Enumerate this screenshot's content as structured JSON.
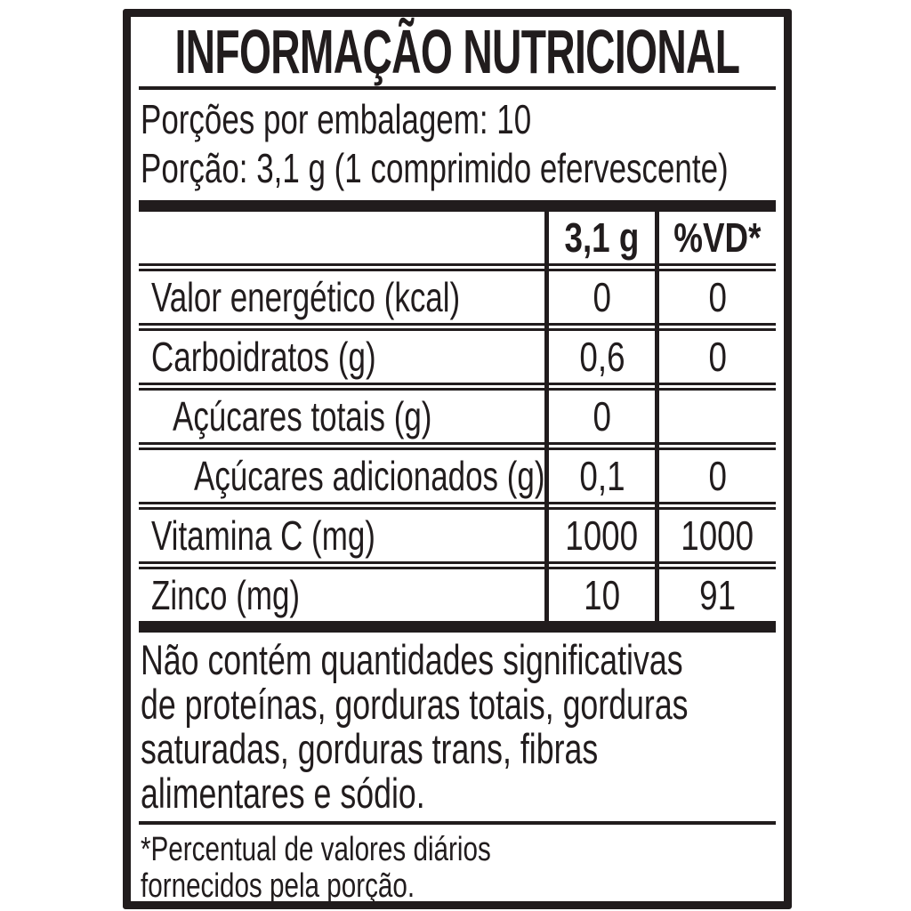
{
  "label": {
    "title": "INFORMAÇÃO NUTRICIONAL",
    "serving_info": {
      "servings_per_package": "Porções por embalagem: 10",
      "serving_size": "Porção: 3,1 g (1 comprimido efervescente)"
    },
    "table": {
      "columns": [
        "3,1 g",
        "%VD*"
      ],
      "rows": [
        {
          "label": "Valor energético (kcal)",
          "amount": "0",
          "dv": "0",
          "indent": 0
        },
        {
          "label": "Carboidratos (g)",
          "amount": "0,6",
          "dv": "0",
          "indent": 0
        },
        {
          "label": "Açúcares totais (g)",
          "amount": "0",
          "dv": "",
          "indent": 1
        },
        {
          "label": "Açúcares adicionados (g)",
          "amount": "0,1",
          "dv": "0",
          "indent": 2
        },
        {
          "label": "Vitamina C (mg)",
          "amount": "1000",
          "dv": "1000",
          "indent": 0
        },
        {
          "label": "Zinco (mg)",
          "amount": "10",
          "dv": "91",
          "indent": 0
        }
      ]
    },
    "no_significant_amounts_lines": [
      "Não contém quantidades significativas",
      "de proteínas, gorduras totais, gorduras",
      "saturadas, gorduras trans, fibras",
      "alimentares e sódio."
    ],
    "footnote_lines": [
      "*Percentual de valores diários",
      "fornecidos pela porção."
    ],
    "colors": {
      "ink": "#211c1d",
      "background": "#ffffff"
    }
  }
}
